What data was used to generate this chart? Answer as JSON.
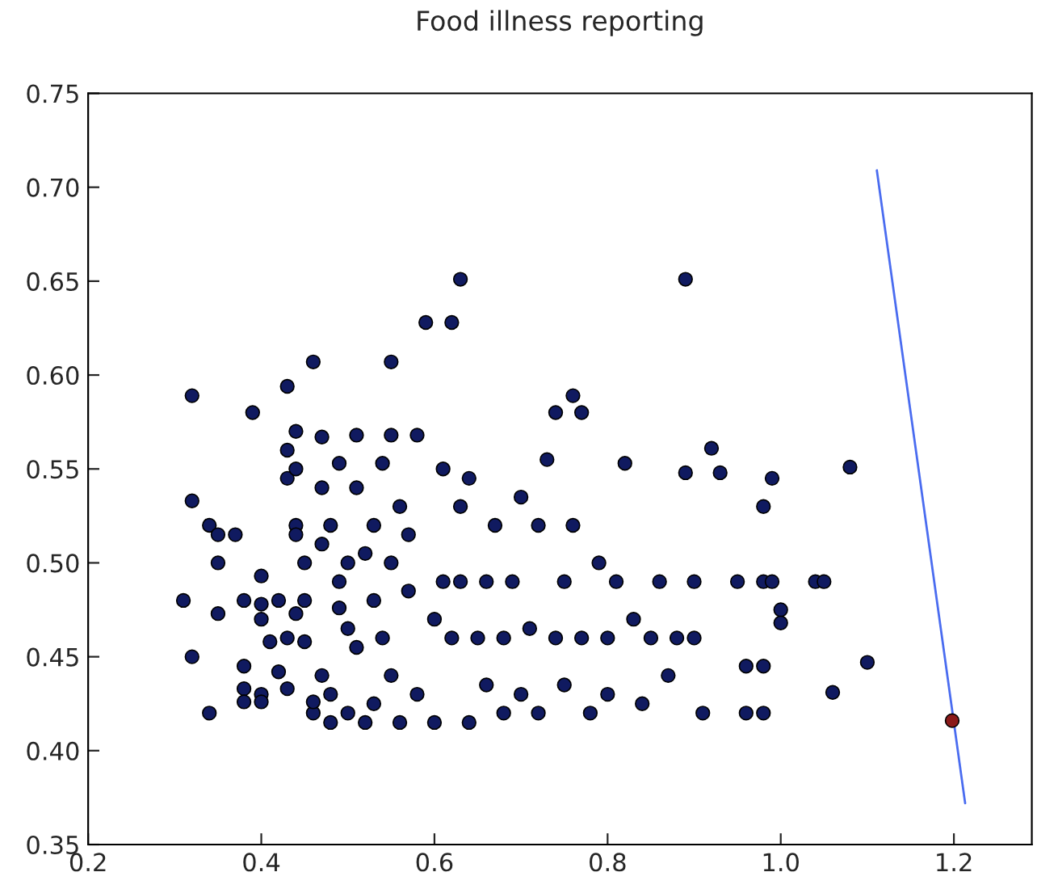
{
  "chart_data": {
    "type": "scatter",
    "title": "Food illness reporting",
    "xlim": [
      0.2,
      1.29
    ],
    "ylim": [
      0.35,
      0.75
    ],
    "xticks": [
      {
        "value": 0.2,
        "label": "0.2"
      },
      {
        "value": 0.4,
        "label": "0.4"
      },
      {
        "value": 0.6,
        "label": "0.6"
      },
      {
        "value": 0.8,
        "label": "0.8"
      },
      {
        "value": 1.0,
        "label": "1.0"
      },
      {
        "value": 1.2,
        "label": "1.2"
      }
    ],
    "yticks": [
      {
        "value": 0.35,
        "label": "0.35"
      },
      {
        "value": 0.4,
        "label": "0.40"
      },
      {
        "value": 0.45,
        "label": "0.45"
      },
      {
        "value": 0.5,
        "label": "0.50"
      },
      {
        "value": 0.55,
        "label": "0.55"
      },
      {
        "value": 0.6,
        "label": "0.60"
      },
      {
        "value": 0.65,
        "label": "0.65"
      },
      {
        "value": 0.7,
        "label": "0.70"
      },
      {
        "value": 0.75,
        "label": "0.75"
      }
    ],
    "series": [
      {
        "marker": "circle",
        "color": "#101a60",
        "x": [
          0.31,
          0.32,
          0.32,
          0.32,
          0.34,
          0.34,
          0.35,
          0.35,
          0.35,
          0.37,
          0.38,
          0.38,
          0.38,
          0.38,
          0.39,
          0.4,
          0.4,
          0.4,
          0.4,
          0.4,
          0.41,
          0.42,
          0.42,
          0.43,
          0.43,
          0.43,
          0.43,
          0.43,
          0.44,
          0.44,
          0.44,
          0.44,
          0.44,
          0.45,
          0.45,
          0.45,
          0.46,
          0.46,
          0.46,
          0.47,
          0.47,
          0.47,
          0.47,
          0.48,
          0.48,
          0.48,
          0.49,
          0.49,
          0.49,
          0.5,
          0.5,
          0.5,
          0.51,
          0.51,
          0.51,
          0.52,
          0.52,
          0.53,
          0.53,
          0.53,
          0.54,
          0.54,
          0.55,
          0.55,
          0.55,
          0.55,
          0.56,
          0.56,
          0.57,
          0.57,
          0.58,
          0.58,
          0.59,
          0.6,
          0.6,
          0.61,
          0.61,
          0.62,
          0.62,
          0.63,
          0.63,
          0.63,
          0.64,
          0.64,
          0.65,
          0.66,
          0.66,
          0.67,
          0.68,
          0.68,
          0.69,
          0.7,
          0.7,
          0.71,
          0.72,
          0.72,
          0.73,
          0.74,
          0.74,
          0.75,
          0.75,
          0.76,
          0.76,
          0.77,
          0.77,
          0.78,
          0.79,
          0.8,
          0.8,
          0.81,
          0.82,
          0.83,
          0.84,
          0.85,
          0.86,
          0.87,
          0.88,
          0.89,
          0.89,
          0.9,
          0.9,
          0.91,
          0.92,
          0.93,
          0.95,
          0.96,
          0.96,
          0.98,
          0.98,
          0.98,
          0.98,
          0.99,
          0.99,
          1.0,
          1.0,
          1.04,
          1.05,
          1.06,
          1.08,
          1.1
        ],
        "values": [
          0.48,
          0.589,
          0.533,
          0.45,
          0.42,
          0.52,
          0.515,
          0.5,
          0.473,
          0.515,
          0.48,
          0.445,
          0.433,
          0.426,
          0.58,
          0.493,
          0.478,
          0.47,
          0.43,
          0.426,
          0.458,
          0.48,
          0.442,
          0.594,
          0.56,
          0.545,
          0.46,
          0.433,
          0.57,
          0.55,
          0.52,
          0.473,
          0.515,
          0.48,
          0.5,
          0.458,
          0.607,
          0.42,
          0.426,
          0.567,
          0.54,
          0.51,
          0.44,
          0.415,
          0.43,
          0.52,
          0.49,
          0.476,
          0.553,
          0.5,
          0.465,
          0.42,
          0.568,
          0.54,
          0.455,
          0.415,
          0.505,
          0.52,
          0.48,
          0.425,
          0.553,
          0.46,
          0.607,
          0.568,
          0.5,
          0.44,
          0.53,
          0.415,
          0.515,
          0.485,
          0.568,
          0.43,
          0.628,
          0.415,
          0.47,
          0.49,
          0.55,
          0.628,
          0.46,
          0.651,
          0.53,
          0.49,
          0.415,
          0.545,
          0.46,
          0.49,
          0.435,
          0.52,
          0.46,
          0.42,
          0.49,
          0.535,
          0.43,
          0.465,
          0.52,
          0.42,
          0.555,
          0.58,
          0.46,
          0.49,
          0.435,
          0.589,
          0.52,
          0.58,
          0.46,
          0.42,
          0.5,
          0.46,
          0.43,
          0.49,
          0.553,
          0.47,
          0.425,
          0.46,
          0.49,
          0.44,
          0.46,
          0.651,
          0.548,
          0.49,
          0.46,
          0.42,
          0.561,
          0.548,
          0.49,
          0.445,
          0.42,
          0.53,
          0.49,
          0.445,
          0.42,
          0.545,
          0.49,
          0.475,
          0.468,
          0.49,
          0.49,
          0.431,
          0.551,
          0.447
        ]
      },
      {
        "marker": "circle",
        "color": "#8b1a1a",
        "x": [
          1.198
        ],
        "values": [
          0.416
        ]
      },
      {
        "type": "line",
        "color": "#4a6cf0",
        "x": [
          1.111,
          1.213
        ],
        "values": [
          0.709,
          0.372
        ]
      }
    ]
  }
}
